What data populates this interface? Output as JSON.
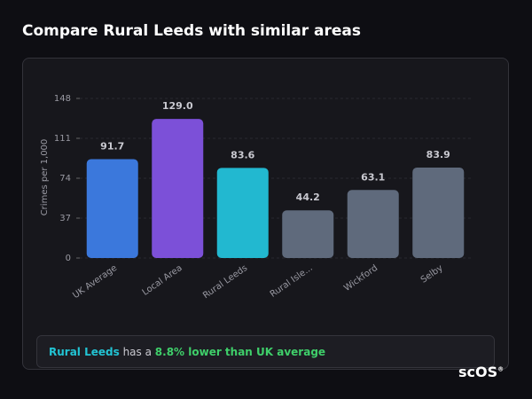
{
  "chart_data": {
    "type": "bar",
    "title": "Compare Rural Leeds with similar areas",
    "y_label": "Crimes per 1,000",
    "categories": [
      "UK Average",
      "Local Area",
      "Rural Leeds",
      "Rural Isle...",
      "Wickford",
      "Selby"
    ],
    "values": [
      91.7,
      129.0,
      83.6,
      44.2,
      63.1,
      83.9
    ],
    "value_labels": [
      "91.7",
      "129.0",
      "83.6",
      "44.2",
      "63.1",
      "83.9"
    ],
    "colors": [
      "#3b78dc",
      "#7c50d8",
      "#22b8d0",
      "#5f6a7c",
      "#5f6a7c",
      "#5f6a7c"
    ],
    "ylim": [
      0,
      148
    ],
    "yticks": [
      0,
      37,
      74,
      111,
      148
    ],
    "grid": true
  },
  "footer": {
    "area": "Rural Leeds",
    "text": "has a",
    "comparison": "8.8% lower than UK average"
  },
  "logo": {
    "text": "scOS",
    "mark": "®"
  }
}
